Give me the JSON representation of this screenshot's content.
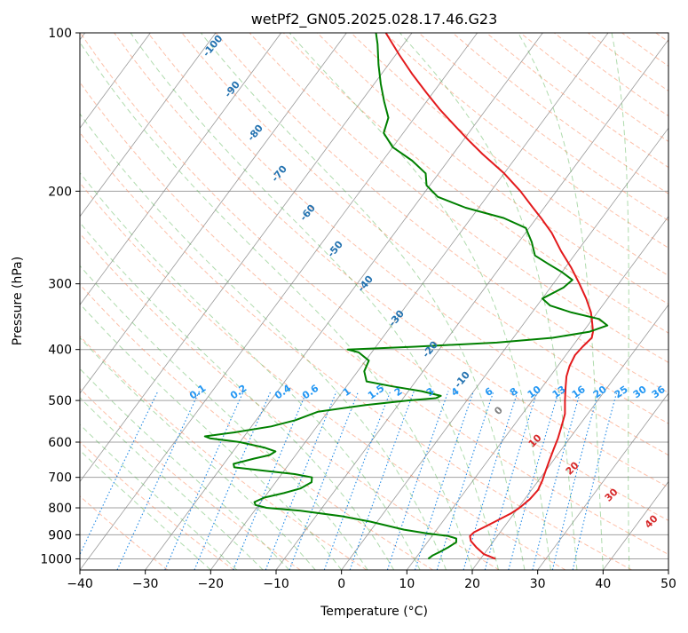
{
  "chart_data": {
    "type": "line",
    "chart_kind": "skew-t log-p thermodynamic diagram",
    "title": "wetPf2_GN05.2025.028.17.46.G23",
    "xlabel": "Temperature (°C)",
    "ylabel": "Pressure (hPa)",
    "xlim": [
      -40,
      50
    ],
    "ylim": [
      1050,
      100
    ],
    "y_scale": "log",
    "x_ticks": [
      -40,
      -30,
      -20,
      -10,
      0,
      10,
      20,
      30,
      40,
      50
    ],
    "y_ticks": [
      100,
      200,
      300,
      400,
      500,
      600,
      700,
      800,
      900,
      1000
    ],
    "grid": true,
    "series": [
      {
        "role": "temperature",
        "color": "#e31a1c",
        "points": [
          [
            1000,
            22.3
          ],
          [
            980,
            20.0
          ],
          [
            950,
            18.0
          ],
          [
            925,
            16.5
          ],
          [
            905,
            15.8
          ],
          [
            890,
            16.0
          ],
          [
            870,
            17.0
          ],
          [
            850,
            18.0
          ],
          [
            820,
            19.5
          ],
          [
            800,
            20.2
          ],
          [
            770,
            20.8
          ],
          [
            740,
            21.0
          ],
          [
            710,
            20.6
          ],
          [
            680,
            20.0
          ],
          [
            650,
            19.4
          ],
          [
            620,
            18.8
          ],
          [
            590,
            18.2
          ],
          [
            560,
            17.4
          ],
          [
            530,
            16.5
          ],
          [
            500,
            15.0
          ],
          [
            470,
            13.5
          ],
          [
            450,
            12.5
          ],
          [
            430,
            11.8
          ],
          [
            410,
            11.4
          ],
          [
            395,
            11.6
          ],
          [
            380,
            12.0
          ],
          [
            370,
            11.5
          ],
          [
            355,
            10.3
          ],
          [
            340,
            9.0
          ],
          [
            320,
            6.7
          ],
          [
            300,
            4.0
          ],
          [
            280,
            1.0
          ],
          [
            260,
            -2.5
          ],
          [
            240,
            -6.0
          ],
          [
            225,
            -9.3
          ],
          [
            215,
            -11.7
          ],
          [
            200,
            -15.5
          ],
          [
            185,
            -20.0
          ],
          [
            170,
            -25.5
          ],
          [
            160,
            -29.2
          ],
          [
            150,
            -33.0
          ],
          [
            140,
            -37.0
          ],
          [
            130,
            -41.0
          ],
          [
            120,
            -45.2
          ],
          [
            110,
            -49.5
          ],
          [
            100,
            -54.0
          ]
        ]
      },
      {
        "role": "dewpoint",
        "color": "#008000",
        "points": [
          [
            1000,
            12.0
          ],
          [
            985,
            12.3
          ],
          [
            970,
            13.0
          ],
          [
            950,
            13.8
          ],
          [
            930,
            14.4
          ],
          [
            915,
            14.0
          ],
          [
            905,
            12.5
          ],
          [
            895,
            9.0
          ],
          [
            880,
            5.0
          ],
          [
            865,
            2.0
          ],
          [
            850,
            -1.0
          ],
          [
            830,
            -6.0
          ],
          [
            810,
            -13.0
          ],
          [
            800,
            -18.5
          ],
          [
            790,
            -20.5
          ],
          [
            780,
            -21.0
          ],
          [
            765,
            -20.0
          ],
          [
            750,
            -17.5
          ],
          [
            735,
            -15.5
          ],
          [
            715,
            -14.5
          ],
          [
            700,
            -15.0
          ],
          [
            690,
            -18.0
          ],
          [
            680,
            -23.0
          ],
          [
            670,
            -28.0
          ],
          [
            660,
            -28.5
          ],
          [
            645,
            -26.0
          ],
          [
            635,
            -24.0
          ],
          [
            625,
            -23.5
          ],
          [
            615,
            -25.5
          ],
          [
            600,
            -30.0
          ],
          [
            590,
            -35.0
          ],
          [
            585,
            -36.0
          ],
          [
            575,
            -32.0
          ],
          [
            560,
            -27.0
          ],
          [
            545,
            -24.0
          ],
          [
            525,
            -21.5
          ],
          [
            510,
            -15.0
          ],
          [
            500,
            -9.0
          ],
          [
            495,
            -5.0
          ],
          [
            490,
            -4.5
          ],
          [
            480,
            -8.0
          ],
          [
            470,
            -13.0
          ],
          [
            460,
            -17.5
          ],
          [
            440,
            -19.0
          ],
          [
            420,
            -19.5
          ],
          [
            405,
            -22.0
          ],
          [
            400,
            -24.0
          ],
          [
            395,
            -14.0
          ],
          [
            388,
            -2.0
          ],
          [
            380,
            6.0
          ],
          [
            370,
            11.0
          ],
          [
            360,
            13.0
          ],
          [
            350,
            11.0
          ],
          [
            340,
            6.0
          ],
          [
            330,
            2.0
          ],
          [
            320,
            0.0
          ],
          [
            305,
            2.0
          ],
          [
            295,
            2.5
          ],
          [
            285,
            0.0
          ],
          [
            275,
            -3.0
          ],
          [
            265,
            -6.0
          ],
          [
            250,
            -8.0
          ],
          [
            235,
            -10.5
          ],
          [
            225,
            -15.0
          ],
          [
            215,
            -22.0
          ],
          [
            205,
            -27.5
          ],
          [
            195,
            -30.5
          ],
          [
            185,
            -32.0
          ],
          [
            175,
            -35.5
          ],
          [
            165,
            -40.0
          ],
          [
            155,
            -43.0
          ],
          [
            145,
            -44.0
          ],
          [
            135,
            -46.5
          ],
          [
            125,
            -49.0
          ],
          [
            115,
            -51.5
          ],
          [
            105,
            -54.0
          ],
          [
            100,
            -55.5
          ]
        ]
      }
    ],
    "dry_adiabat_labels": [
      -100,
      -90,
      -80,
      -70,
      -60,
      -50,
      -40,
      -30,
      -20,
      -10
    ],
    "moist_adiabat_labels": [
      0,
      10,
      20,
      30,
      40
    ],
    "mixing_ratio_labels": [
      "0.1",
      "0.2",
      "0.4",
      "0.6",
      "1",
      "1.5",
      "2",
      "3",
      "4",
      "6",
      "8",
      "10",
      "13",
      "16",
      "20",
      "25",
      "30",
      "36"
    ],
    "colors": {
      "temperature": "#e31a1c",
      "dewpoint": "#008000",
      "dry_adiabat": "#fc8d62",
      "moist_adiabat": "#4daf4a",
      "mixing_ratio": "#1e88e5",
      "isotherm": "#808080",
      "isobar": "#a0a0a0",
      "dry_adiabat_label": "#2372b0",
      "mixing_ratio_label": "#2196f3",
      "moist_adiabat_label": "#d62728"
    }
  }
}
